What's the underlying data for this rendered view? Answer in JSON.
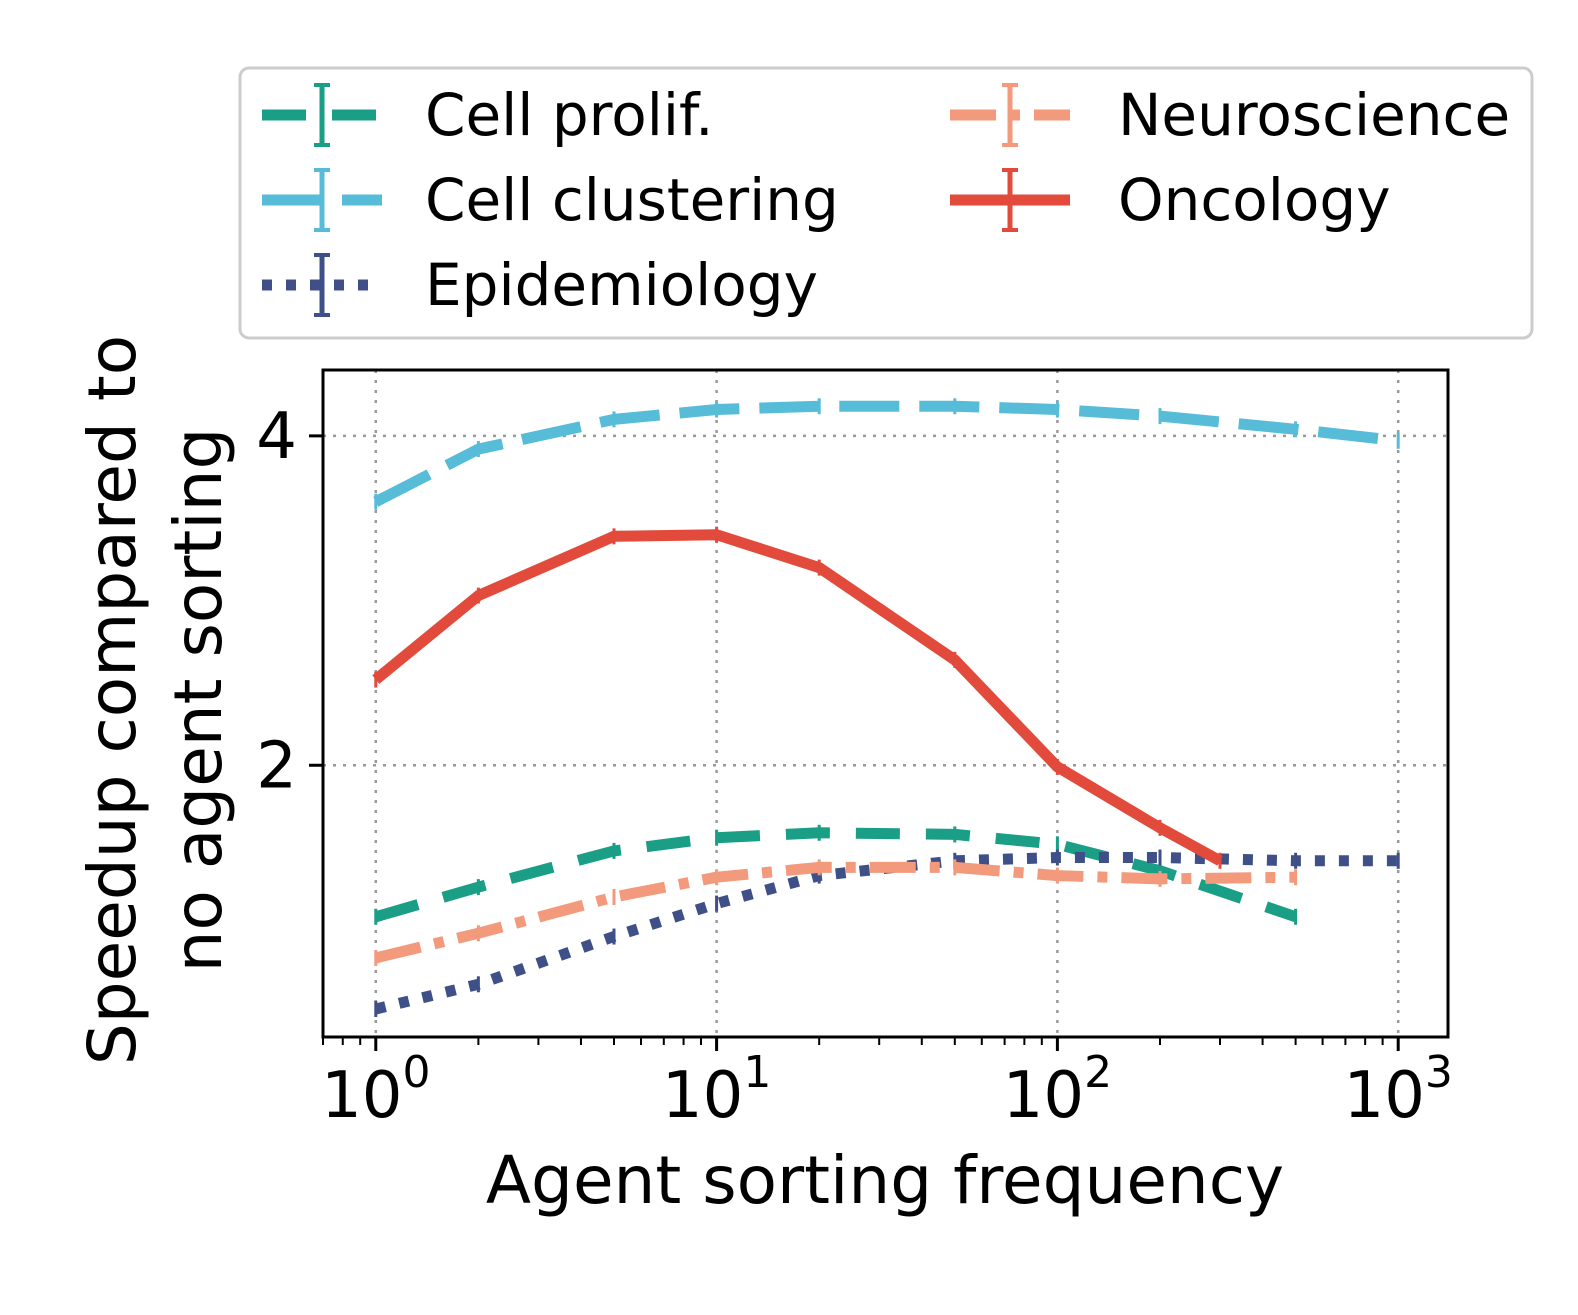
{
  "chart_data": {
    "type": "line",
    "title": "",
    "xlabel": "Agent sorting frequency",
    "ylabel": [
      "Speedup compared to",
      "no agent sorting"
    ],
    "xscale": "log",
    "xlim": [
      0.7,
      1400
    ],
    "ylim": [
      0.35,
      4.4
    ],
    "xticks": [
      {
        "value": 1,
        "base": "10",
        "exp": "0"
      },
      {
        "value": 10,
        "base": "10",
        "exp": "1"
      },
      {
        "value": 100,
        "base": "10",
        "exp": "2"
      },
      {
        "value": 1000,
        "base": "10",
        "exp": "3"
      }
    ],
    "yticks": [
      {
        "value": 2,
        "label": "2"
      },
      {
        "value": 4,
        "label": "4"
      }
    ],
    "grid": true,
    "legend_position": "above",
    "series": [
      {
        "name": "Cell prolif.",
        "color": "#1a9e86",
        "style": "dashed",
        "x": [
          1,
          2,
          5,
          10,
          20,
          50,
          100,
          200,
          500
        ],
        "y": [
          1.08,
          1.26,
          1.48,
          1.56,
          1.59,
          1.58,
          1.52,
          1.36,
          1.08
        ]
      },
      {
        "name": "Cell clustering",
        "color": "#56bcd8",
        "style": "longdash",
        "x": [
          1,
          2,
          5,
          10,
          20,
          50,
          100,
          200,
          500,
          1000
        ],
        "y": [
          3.6,
          3.92,
          4.1,
          4.16,
          4.18,
          4.18,
          4.16,
          4.12,
          4.04,
          3.97
        ]
      },
      {
        "name": "Epidemiology",
        "color": "#3f5089",
        "style": "dotted",
        "x": [
          1,
          2,
          5,
          10,
          20,
          50,
          100,
          200,
          500,
          1000
        ],
        "y": [
          0.52,
          0.67,
          0.96,
          1.16,
          1.33,
          1.42,
          1.44,
          1.44,
          1.42,
          1.42
        ]
      },
      {
        "name": "Neuroscience",
        "color": "#f39a7d",
        "style": "dashdot",
        "x": [
          1,
          2,
          5,
          10,
          20,
          50,
          100,
          200,
          500
        ],
        "y": [
          0.83,
          0.98,
          1.2,
          1.32,
          1.38,
          1.38,
          1.33,
          1.31,
          1.32
        ]
      },
      {
        "name": "Oncology",
        "color": "#e24b3b",
        "style": "solid",
        "x": [
          1,
          2,
          5,
          10,
          20,
          50,
          100,
          200,
          300
        ],
        "y": [
          2.52,
          3.03,
          3.39,
          3.4,
          3.2,
          2.64,
          1.99,
          1.62,
          1.42
        ]
      }
    ]
  }
}
